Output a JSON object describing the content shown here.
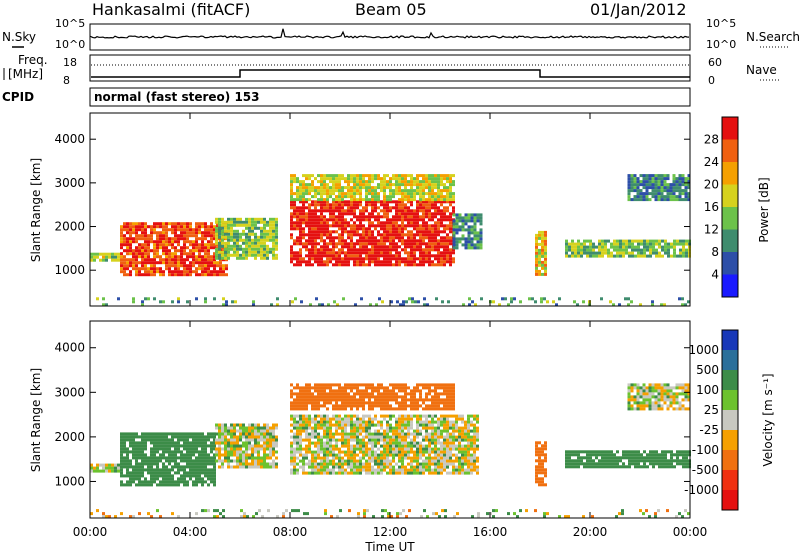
{
  "header": {
    "station": "Hankasalmi (fitACF)",
    "beam": "Beam 05",
    "date": "01/Jan/2012"
  },
  "panels": {
    "nsky": {
      "left_label": "N.Sky",
      "right_label": "N.Search",
      "left_ticks": [
        "10^5",
        "10^0"
      ],
      "right_ticks": [
        "10^5",
        "10^0"
      ]
    },
    "freq": {
      "left_label_1": "Freq.",
      "left_label_2": "[MHz]",
      "right_label": "Nave",
      "left_ticks": [
        "18",
        "8"
      ],
      "right_ticks": [
        "60",
        "0"
      ]
    },
    "cpid": {
      "label": "CPID",
      "text": "normal (fast stereo) 153"
    }
  },
  "chart_data": [
    {
      "type": "heatmap",
      "name": "power",
      "ylabel": "Slant Range [km]",
      "ylim": [
        180,
        4600
      ],
      "yticks": [
        "1000",
        "2000",
        "3000",
        "4000"
      ],
      "xlim": [
        0,
        24
      ],
      "xticks": [
        "00:00",
        "04:00",
        "08:00",
        "12:00",
        "16:00",
        "20:00",
        "00:00"
      ],
      "colorbar": {
        "label": "Power [dB]",
        "ticks": [
          "4",
          "8",
          "12",
          "16",
          "20",
          "24",
          "28"
        ],
        "colors": [
          "#1a1aff",
          "#2d4fa8",
          "#3f8c6e",
          "#6cc24a",
          "#d6d21e",
          "#f5a000",
          "#f06010",
          "#e51010"
        ]
      },
      "features": [
        {
          "t_start": 0.0,
          "t_end": 24.0,
          "r_min": 180,
          "r_max": 380,
          "level": "scattered weak"
        },
        {
          "t_start": 0.0,
          "t_end": 1.2,
          "r_min": 1200,
          "r_max": 1400,
          "level": 16
        },
        {
          "t_start": 1.2,
          "t_end": 5.5,
          "r_min": 900,
          "r_max": 2100,
          "level": 28
        },
        {
          "t_start": 5.0,
          "t_end": 7.5,
          "r_min": 1300,
          "r_max": 2200,
          "level": 14
        },
        {
          "t_start": 8.0,
          "t_end": 14.5,
          "r_min": 1100,
          "r_max": 2600,
          "level": 30
        },
        {
          "t_start": 8.0,
          "t_end": 14.5,
          "r_min": 2600,
          "r_max": 3200,
          "level": 18
        },
        {
          "t_start": 14.5,
          "t_end": 15.7,
          "r_min": 1500,
          "r_max": 2300,
          "level": 10
        },
        {
          "t_start": 17.8,
          "t_end": 18.2,
          "r_min": 900,
          "r_max": 1900,
          "level": 20
        },
        {
          "t_start": 19.0,
          "t_end": 24.0,
          "r_min": 1300,
          "r_max": 1700,
          "level": 14
        },
        {
          "t_start": 21.5,
          "t_end": 24.0,
          "r_min": 2600,
          "r_max": 3200,
          "level": 10
        }
      ]
    },
    {
      "type": "heatmap",
      "name": "velocity",
      "ylabel": "Slant Range [km]",
      "ylim": [
        180,
        4600
      ],
      "yticks": [
        "1000",
        "2000",
        "3000",
        "4000"
      ],
      "xlim": [
        0,
        24
      ],
      "xticks": [
        "00:00",
        "04:00",
        "08:00",
        "12:00",
        "16:00",
        "20:00",
        "00:00"
      ],
      "xlabel": "Time UT",
      "colorbar": {
        "label": "Velocity [m s⁻¹]",
        "ticks": [
          "1000",
          "500",
          "100",
          "25",
          "-25",
          "-100",
          "-500",
          "-1000"
        ],
        "colors": [
          "#1838b8",
          "#2a6f9a",
          "#3c8c48",
          "#6cc22e",
          "#c8c8c0",
          "#f5a000",
          "#f07010",
          "#f03010",
          "#e51010"
        ]
      },
      "features": [
        {
          "t_start": 0.0,
          "t_end": 24.0,
          "r_min": 180,
          "r_max": 380,
          "level": "scattered weak"
        },
        {
          "t_start": 0.0,
          "t_end": 1.2,
          "r_min": 1200,
          "r_max": 1400,
          "velocity": 0
        },
        {
          "t_start": 1.2,
          "t_end": 5.0,
          "r_min": 900,
          "r_max": 2100,
          "velocity": 150
        },
        {
          "t_start": 5.0,
          "t_end": 7.5,
          "r_min": 1300,
          "r_max": 2300,
          "velocity": 0
        },
        {
          "t_start": 8.0,
          "t_end": 15.5,
          "r_min": 1200,
          "r_max": 2500,
          "velocity": 0
        },
        {
          "t_start": 8.0,
          "t_end": 14.5,
          "r_min": 2600,
          "r_max": 3200,
          "velocity": -200
        },
        {
          "t_start": 17.8,
          "t_end": 18.2,
          "r_min": 900,
          "r_max": 1900,
          "velocity": -300
        },
        {
          "t_start": 19.0,
          "t_end": 24.0,
          "r_min": 1300,
          "r_max": 1700,
          "velocity": 200
        },
        {
          "t_start": 21.5,
          "t_end": 24.0,
          "r_min": 2600,
          "r_max": 3200,
          "velocity": 0
        }
      ]
    }
  ]
}
